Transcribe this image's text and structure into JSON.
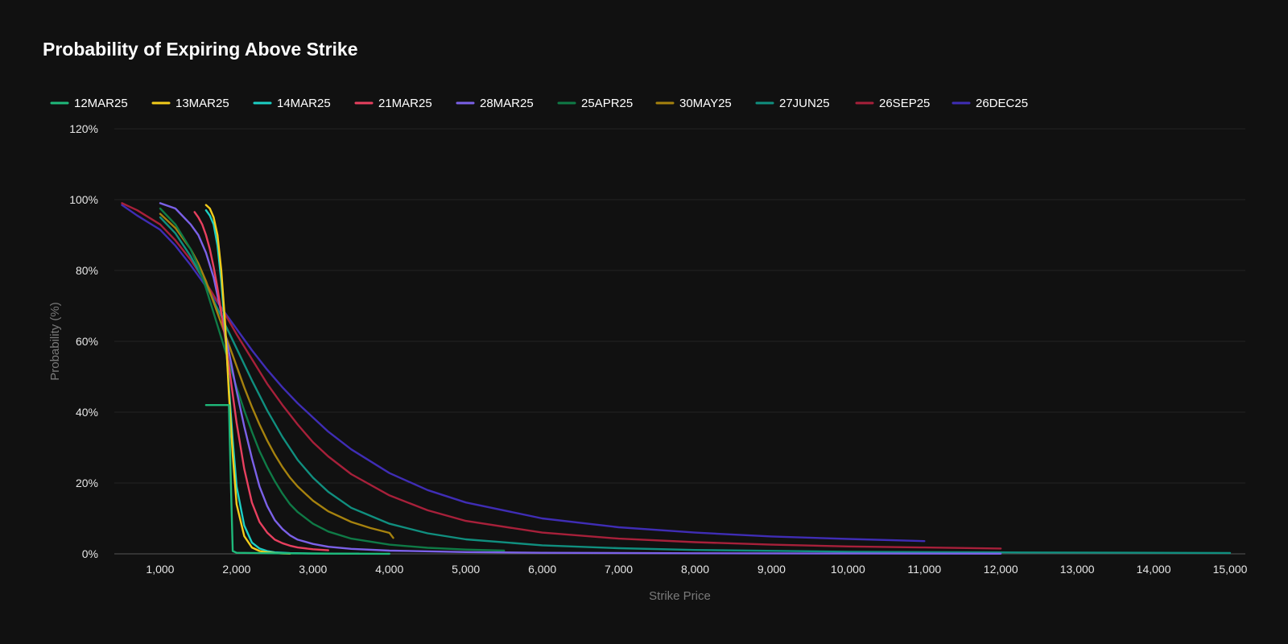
{
  "chart_data": {
    "type": "line",
    "title": "Probability of Expiring Above Strike",
    "xlabel": "Strike Price",
    "ylabel": "Probability (%)",
    "xlim": [
      400,
      15200
    ],
    "ylim": [
      0,
      120
    ],
    "x_ticks": [
      1000,
      2000,
      3000,
      4000,
      5000,
      6000,
      7000,
      8000,
      9000,
      10000,
      11000,
      12000,
      13000,
      14000,
      15000
    ],
    "x_tick_labels": [
      "1,000",
      "2,000",
      "3,000",
      "4,000",
      "5,000",
      "6,000",
      "7,000",
      "8,000",
      "9,000",
      "10,000",
      "11,000",
      "12,000",
      "13,000",
      "14,000",
      "15,000"
    ],
    "y_ticks": [
      0,
      20,
      40,
      60,
      80,
      100,
      120
    ],
    "y_tick_labels": [
      "0%",
      "20%",
      "40%",
      "60%",
      "80%",
      "100%",
      "120%"
    ],
    "grid": true,
    "legend_position": "top-left",
    "series": [
      {
        "name": "12MAR25",
        "color": "#1fb97a",
        "points": [
          [
            1600,
            42
          ],
          [
            1900,
            42
          ],
          [
            1925,
            20
          ],
          [
            1950,
            0.8
          ],
          [
            2000,
            0.3
          ],
          [
            2500,
            0.15
          ],
          [
            3000,
            0.1
          ],
          [
            3500,
            0.05
          ],
          [
            4000,
            0.02
          ]
        ]
      },
      {
        "name": "13MAR25",
        "color": "#f2cc1b",
        "points": [
          [
            1600,
            98.5
          ],
          [
            1650,
            97.5
          ],
          [
            1700,
            95
          ],
          [
            1750,
            90
          ],
          [
            1800,
            80
          ],
          [
            1850,
            65
          ],
          [
            1900,
            45
          ],
          [
            1950,
            28
          ],
          [
            2000,
            14
          ],
          [
            2100,
            5
          ],
          [
            2200,
            1.8
          ],
          [
            2300,
            0.8
          ],
          [
            2400,
            0.4
          ],
          [
            2500,
            0.2
          ],
          [
            2600,
            0.1
          ],
          [
            2700,
            0.05
          ]
        ]
      },
      {
        "name": "14MAR25",
        "color": "#1ccfc4",
        "points": [
          [
            1600,
            97
          ],
          [
            1650,
            95.5
          ],
          [
            1700,
            93
          ],
          [
            1750,
            87
          ],
          [
            1800,
            77
          ],
          [
            1850,
            63
          ],
          [
            1900,
            47
          ],
          [
            1950,
            32
          ],
          [
            2000,
            19
          ],
          [
            2100,
            8
          ],
          [
            2200,
            3.2
          ],
          [
            2300,
            1.5
          ],
          [
            2400,
            0.8
          ],
          [
            2500,
            0.4
          ],
          [
            2700,
            0.2
          ],
          [
            3000,
            0.1
          ],
          [
            3600,
            0.05
          ]
        ]
      },
      {
        "name": "21MAR25",
        "color": "#e8405f",
        "points": [
          [
            1450,
            96.5
          ],
          [
            1500,
            95
          ],
          [
            1550,
            93
          ],
          [
            1600,
            90
          ],
          [
            1650,
            86
          ],
          [
            1700,
            81
          ],
          [
            1750,
            75
          ],
          [
            1800,
            68
          ],
          [
            1850,
            61
          ],
          [
            1900,
            53
          ],
          [
            1950,
            45
          ],
          [
            2000,
            37
          ],
          [
            2100,
            24
          ],
          [
            2200,
            14.5
          ],
          [
            2300,
            9
          ],
          [
            2400,
            6
          ],
          [
            2500,
            4
          ],
          [
            2600,
            3
          ],
          [
            2700,
            2.3
          ],
          [
            2800,
            1.8
          ],
          [
            3000,
            1.3
          ],
          [
            3200,
            1
          ]
        ]
      },
      {
        "name": "28MAR25",
        "color": "#7b61e8",
        "points": [
          [
            1000,
            99
          ],
          [
            1200,
            97.5
          ],
          [
            1400,
            93
          ],
          [
            1500,
            90
          ],
          [
            1600,
            85
          ],
          [
            1700,
            78
          ],
          [
            1800,
            68
          ],
          [
            1900,
            57
          ],
          [
            2000,
            46
          ],
          [
            2100,
            36
          ],
          [
            2200,
            27
          ],
          [
            2300,
            19
          ],
          [
            2400,
            13.5
          ],
          [
            2500,
            9.5
          ],
          [
            2600,
            7
          ],
          [
            2700,
            5.2
          ],
          [
            2800,
            4
          ],
          [
            3000,
            2.8
          ],
          [
            3200,
            2
          ],
          [
            3500,
            1.4
          ],
          [
            4000,
            0.9
          ],
          [
            5000,
            0.5
          ],
          [
            6000,
            0.3
          ],
          [
            8000,
            0.15
          ],
          [
            10000,
            0.08
          ],
          [
            12000,
            0.05
          ]
        ]
      },
      {
        "name": "25APR25",
        "color": "#0f7a46",
        "points": [
          [
            1000,
            97.5
          ],
          [
            1200,
            93
          ],
          [
            1400,
            86
          ],
          [
            1500,
            81
          ],
          [
            1600,
            75
          ],
          [
            1700,
            68
          ],
          [
            1800,
            61
          ],
          [
            1900,
            54
          ],
          [
            2000,
            47
          ],
          [
            2100,
            40.5
          ],
          [
            2200,
            34.5
          ],
          [
            2300,
            29
          ],
          [
            2400,
            24.5
          ],
          [
            2500,
            20.5
          ],
          [
            2600,
            17
          ],
          [
            2700,
            14
          ],
          [
            2800,
            11.8
          ],
          [
            3000,
            8.5
          ],
          [
            3200,
            6.3
          ],
          [
            3500,
            4.3
          ],
          [
            4000,
            2.6
          ],
          [
            4500,
            1.7
          ],
          [
            5000,
            1.2
          ],
          [
            5500,
            0.9
          ]
        ]
      },
      {
        "name": "30MAY25",
        "color": "#a6820e",
        "points": [
          [
            1000,
            96
          ],
          [
            1200,
            92
          ],
          [
            1400,
            86
          ],
          [
            1500,
            82
          ],
          [
            1600,
            77
          ],
          [
            1700,
            71
          ],
          [
            1800,
            65
          ],
          [
            1900,
            59
          ],
          [
            2000,
            53
          ],
          [
            2100,
            47
          ],
          [
            2200,
            41.5
          ],
          [
            2300,
            36.5
          ],
          [
            2400,
            32
          ],
          [
            2500,
            28
          ],
          [
            2600,
            24.5
          ],
          [
            2700,
            21.5
          ],
          [
            2800,
            19
          ],
          [
            3000,
            15
          ],
          [
            3200,
            12
          ],
          [
            3500,
            9
          ],
          [
            3750,
            7.3
          ],
          [
            4000,
            5.9
          ],
          [
            4050,
            4.5
          ]
        ]
      },
      {
        "name": "27JUN25",
        "color": "#108f7f",
        "points": [
          [
            1000,
            95
          ],
          [
            1200,
            90.5
          ],
          [
            1400,
            84
          ],
          [
            1600,
            76
          ],
          [
            1800,
            67
          ],
          [
            2000,
            58
          ],
          [
            2200,
            49
          ],
          [
            2400,
            40.5
          ],
          [
            2600,
            33
          ],
          [
            2800,
            26.5
          ],
          [
            3000,
            21.5
          ],
          [
            3200,
            17.5
          ],
          [
            3500,
            13
          ],
          [
            4000,
            8.5
          ],
          [
            4500,
            5.8
          ],
          [
            5000,
            4.1
          ],
          [
            6000,
            2.4
          ],
          [
            7000,
            1.6
          ],
          [
            8000,
            1.1
          ],
          [
            10000,
            0.6
          ],
          [
            12000,
            0.4
          ],
          [
            15000,
            0.25
          ]
        ]
      },
      {
        "name": "26SEP25",
        "color": "#a7203a",
        "points": [
          [
            500,
            99
          ],
          [
            700,
            97
          ],
          [
            1000,
            93
          ],
          [
            1200,
            88.5
          ],
          [
            1400,
            83
          ],
          [
            1600,
            76.5
          ],
          [
            1800,
            69.5
          ],
          [
            2000,
            62
          ],
          [
            2200,
            55
          ],
          [
            2400,
            48
          ],
          [
            2600,
            42
          ],
          [
            2800,
            36.5
          ],
          [
            3000,
            31.5
          ],
          [
            3200,
            27.5
          ],
          [
            3500,
            22.5
          ],
          [
            4000,
            16.5
          ],
          [
            4500,
            12.3
          ],
          [
            5000,
            9.3
          ],
          [
            6000,
            6
          ],
          [
            7000,
            4.3
          ],
          [
            8000,
            3.3
          ],
          [
            9000,
            2.6
          ],
          [
            10000,
            2.1
          ],
          [
            11000,
            1.8
          ],
          [
            12000,
            1.5
          ]
        ]
      },
      {
        "name": "26DEC25",
        "color": "#3f2db5",
        "points": [
          [
            500,
            98.5
          ],
          [
            700,
            95.5
          ],
          [
            1000,
            91.5
          ],
          [
            1200,
            87
          ],
          [
            1400,
            81.5
          ],
          [
            1600,
            75.5
          ],
          [
            1800,
            69.5
          ],
          [
            2000,
            63.5
          ],
          [
            2200,
            57.5
          ],
          [
            2400,
            52
          ],
          [
            2600,
            47
          ],
          [
            2800,
            42.5
          ],
          [
            3000,
            38.5
          ],
          [
            3200,
            34.5
          ],
          [
            3500,
            29.5
          ],
          [
            4000,
            22.8
          ],
          [
            4500,
            18
          ],
          [
            5000,
            14.5
          ],
          [
            6000,
            10
          ],
          [
            7000,
            7.5
          ],
          [
            8000,
            6
          ],
          [
            9000,
            4.9
          ],
          [
            10000,
            4.2
          ],
          [
            11000,
            3.6
          ]
        ]
      }
    ]
  }
}
